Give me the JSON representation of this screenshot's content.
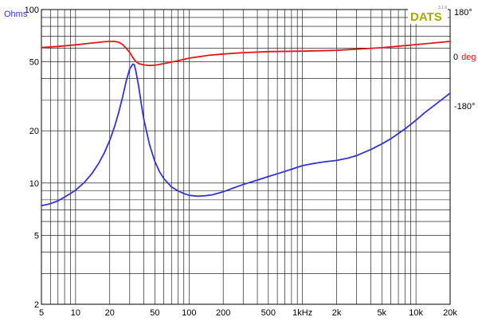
{
  "chart_data": {
    "type": "line",
    "brand": "DATS",
    "version": "3.1.6",
    "xlabel": "",
    "ylabel": "Ohms",
    "x_scale": "log",
    "y_scale": "log",
    "xlim": [
      5,
      20000
    ],
    "ylim": [
      2,
      100
    ],
    "grid": true,
    "x_ticks": [
      5,
      10,
      20,
      50,
      100,
      200,
      500,
      1000,
      2000,
      5000,
      10000,
      20000
    ],
    "x_tick_labels": [
      "5",
      "10",
      "20",
      "50",
      "100",
      "200",
      "500",
      "1kHz",
      "2k",
      "5k",
      "10k",
      "20k"
    ],
    "y_ticks": [
      2,
      5,
      10,
      20,
      50,
      100
    ],
    "y_tick_labels": [
      "2",
      "5",
      "10",
      "20",
      "50",
      "100"
    ],
    "y2_label": "deg",
    "y2_ticks": [
      180,
      0,
      -180
    ],
    "y2_tick_labels": [
      "180°",
      "0",
      "-180°"
    ],
    "colors": {
      "impedance": "#3434d6",
      "phase": "#e01818",
      "grid": "#000000"
    },
    "series": [
      {
        "axis": "left",
        "color": "#3434d6",
        "x": [
          5,
          6,
          7,
          8,
          9,
          10,
          12,
          14,
          16,
          18,
          20,
          22,
          24,
          26,
          28,
          30,
          32,
          33,
          34,
          36,
          38,
          40,
          45,
          50,
          55,
          60,
          70,
          80,
          90,
          100,
          120,
          140,
          160,
          200,
          250,
          300,
          400,
          500,
          600,
          800,
          1000,
          1200,
          1500,
          2000,
          2500,
          3000,
          4000,
          5000,
          6000,
          8000,
          10000,
          12000,
          15000,
          20000
        ],
        "y": [
          7.4,
          7.6,
          7.9,
          8.3,
          8.7,
          9.1,
          10.1,
          11.4,
          13.0,
          15.0,
          17.6,
          21.0,
          25.5,
          31.5,
          39,
          45.5,
          48.5,
          48.0,
          44.0,
          36.0,
          28.5,
          23.2,
          16.5,
          13.3,
          11.6,
          10.6,
          9.5,
          9.0,
          8.7,
          8.5,
          8.4,
          8.45,
          8.55,
          8.9,
          9.4,
          9.8,
          10.4,
          10.9,
          11.3,
          12.0,
          12.6,
          12.9,
          13.2,
          13.5,
          13.9,
          14.4,
          15.6,
          16.8,
          18.0,
          20.5,
          23.0,
          25.5,
          28.5,
          33.0
        ]
      },
      {
        "axis": "right",
        "color": "#e01818",
        "x": [
          5,
          7,
          10,
          14,
          18,
          20,
          22,
          24,
          26,
          28,
          30,
          32,
          34,
          36,
          40,
          45,
          50,
          60,
          80,
          100,
          150,
          200,
          300,
          500,
          1000,
          2000,
          5000,
          10000,
          20000
        ],
        "y": [
          44,
          48,
          54,
          61,
          66,
          67,
          67,
          64,
          55,
          40,
          25,
          5,
          -10,
          -18,
          -23,
          -25,
          -24,
          -18,
          -7,
          3,
          14,
          19,
          24,
          28,
          30,
          33,
          43,
          55,
          67
        ]
      }
    ]
  }
}
